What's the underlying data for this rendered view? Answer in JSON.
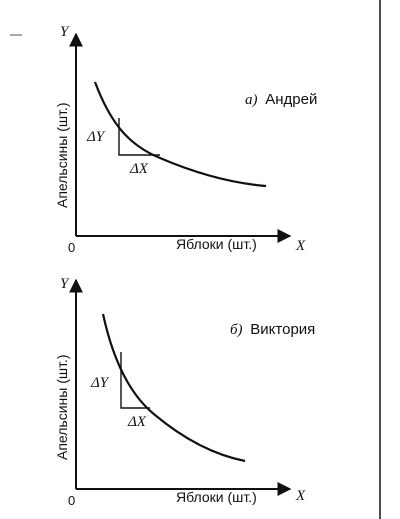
{
  "panels": [
    {
      "id": "a",
      "title_letter": "а)",
      "title_name": "Андрей",
      "y_axis_letter": "Y",
      "x_axis_letter": "X",
      "y_axis_label": "Апельсины (шт.)",
      "x_axis_label": "Яблоки (шт.)",
      "origin_label": "0",
      "delta_y_label": "ΔY",
      "delta_x_label": "ΔX"
    },
    {
      "id": "b",
      "title_letter": "б)",
      "title_name": "Виктория",
      "y_axis_letter": "Y",
      "x_axis_letter": "X",
      "y_axis_label": "Апельсины (шт.)",
      "x_axis_label": "Яблоки (шт.)",
      "origin_label": "0",
      "delta_y_label": "ΔY",
      "delta_x_label": "ΔX"
    }
  ]
}
